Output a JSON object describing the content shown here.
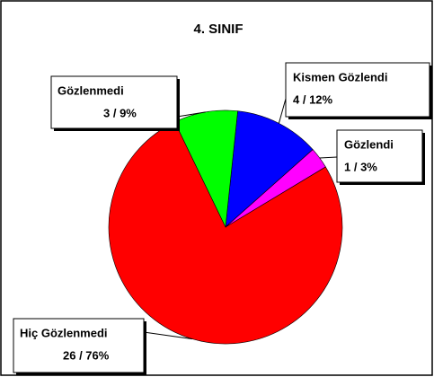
{
  "chart_data": {
    "type": "pie",
    "title": "4. SINIF",
    "categories": [
      "Kismen Gözlendi",
      "Gözlendi",
      "Hiç Gözlenmedi",
      "Gözlenmedi"
    ],
    "values": [
      4,
      1,
      26,
      3
    ],
    "value_labels": [
      "4 / 12%",
      "1 / 3%",
      "26 / 76%",
      "3 / 9%"
    ],
    "colors": [
      "#0000ff",
      "#ff00ff",
      "#ff0000",
      "#00ff00"
    ]
  }
}
